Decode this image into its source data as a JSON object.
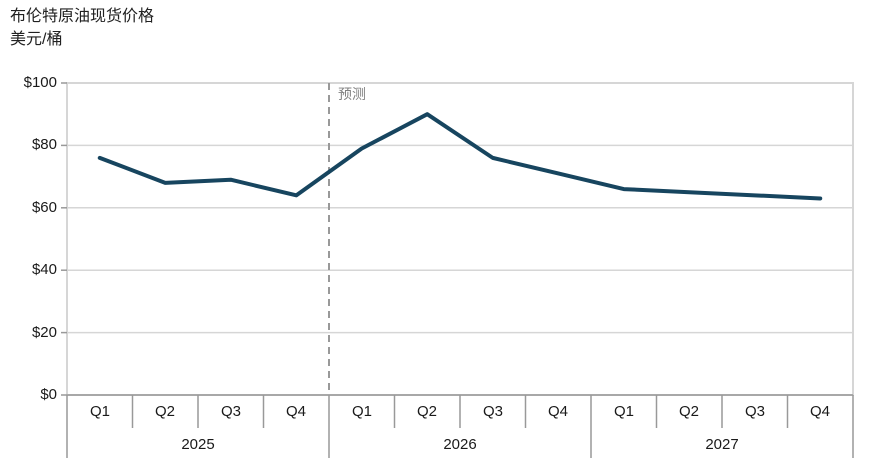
{
  "header": {
    "title": "布伦特原油现货价格",
    "subtitle": "美元/桶"
  },
  "chart_data": {
    "type": "line",
    "title": "布伦特原油现货价格",
    "ylabel": "美元/桶",
    "ylim": [
      0,
      100
    ],
    "ytick_step": 20,
    "ytick_labels": [
      "$0",
      "$20",
      "$40",
      "$60",
      "$80",
      "$100"
    ],
    "quarters": [
      "Q1",
      "Q2",
      "Q3",
      "Q4",
      "Q1",
      "Q2",
      "Q3",
      "Q4",
      "Q1",
      "Q2",
      "Q3",
      "Q4"
    ],
    "years": [
      "2025",
      "2026",
      "2027"
    ],
    "series": [
      {
        "name": "布伦特原油现货价格",
        "values": [
          76,
          68,
          69,
          64,
          79,
          90,
          76,
          71,
          66,
          65,
          64,
          63
        ]
      }
    ],
    "annotations": [
      {
        "type": "forecast-divider",
        "label": "预测",
        "x_index": 4
      }
    ],
    "grid": "horizontal",
    "legend": "none",
    "colors": {
      "line": "#17455F",
      "grid": "#D6D6D6",
      "axis": "#999999",
      "forecast_text": "#808080",
      "text": "#1A1A1A"
    }
  }
}
